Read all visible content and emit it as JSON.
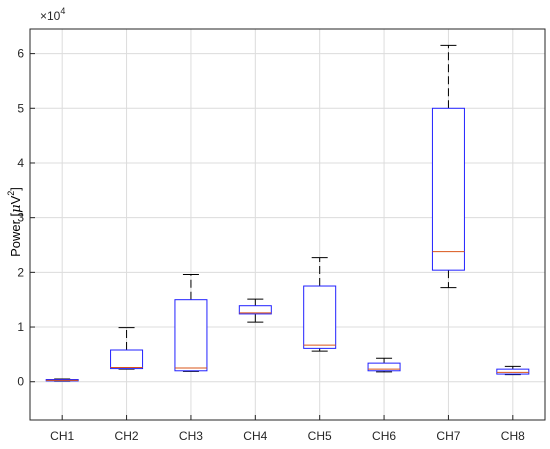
{
  "chart_data": {
    "type": "boxplot",
    "title": "",
    "xlabel": "",
    "ylabel_prefix": "Power [",
    "ylabel_mu": "μ",
    "ylabel_unit": "V",
    "ylabel_exp": "2",
    "ylabel_suffix": "]",
    "exponent_base": "×10",
    "exponent_power": "4",
    "scale": 10000,
    "ylim": [
      -7000,
      64500
    ],
    "yticks": [
      0,
      10000,
      20000,
      30000,
      40000,
      50000,
      60000
    ],
    "ytick_labels": [
      "0",
      "1",
      "2",
      "3",
      "4",
      "5",
      "6"
    ],
    "grid": true,
    "categories": [
      "CH1",
      "CH2",
      "CH3",
      "CH4",
      "CH5",
      "CH6",
      "CH7",
      "CH8"
    ],
    "boxes": [
      {
        "whisker_low": 100,
        "q1": 150,
        "median": 250,
        "q3": 400,
        "whisker_high": 500
      },
      {
        "whisker_low": 2300,
        "q1": 2400,
        "median": 2600,
        "q3": 5800,
        "whisker_high": 9900
      },
      {
        "whisker_low": 1900,
        "q1": 2000,
        "median": 2500,
        "q3": 15000,
        "whisker_high": 19600
      },
      {
        "whisker_low": 10900,
        "q1": 12400,
        "median": 12600,
        "q3": 13900,
        "whisker_high": 15100
      },
      {
        "whisker_low": 5600,
        "q1": 6100,
        "median": 6700,
        "q3": 17500,
        "whisker_high": 22700
      },
      {
        "whisker_low": 1800,
        "q1": 2000,
        "median": 2300,
        "q3": 3400,
        "whisker_high": 4300
      },
      {
        "whisker_low": 17200,
        "q1": 20400,
        "median": 23800,
        "q3": 50000,
        "whisker_high": 61500
      },
      {
        "whisker_low": 1300,
        "q1": 1400,
        "median": 1700,
        "q3": 2300,
        "whisker_high": 2800
      }
    ],
    "colors": {
      "box": "#2020ff",
      "median": "#d9541a",
      "whisker": "#000000",
      "grid": "#dcdcdc",
      "axis": "#262626"
    }
  }
}
